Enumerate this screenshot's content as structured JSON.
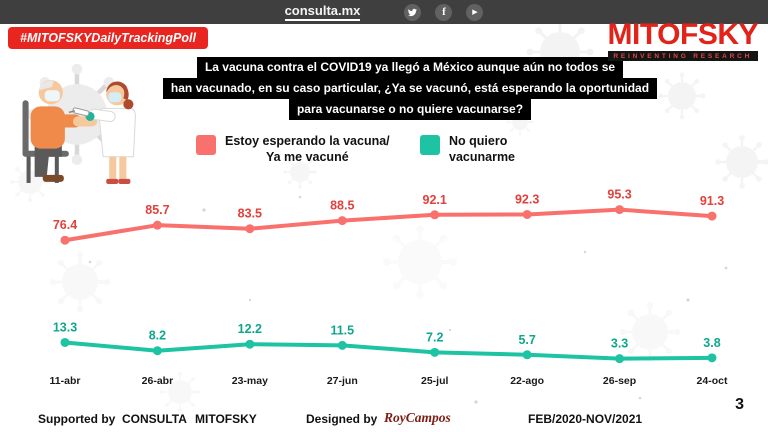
{
  "colors": {
    "brand_red": "#e2231a",
    "badge_red": "#e8251f",
    "topbar_dark": "#403f3f",
    "series_red": "#f8716c",
    "series_green": "#1dc3a3"
  },
  "topbar": {
    "site": "consulta.mx",
    "social": [
      "twitter",
      "facebook",
      "youtube"
    ]
  },
  "badge": "#MITOFSKYDailyTrackingPoll",
  "logo": {
    "name": "MITOFSKY",
    "tagline": "REINVENTING RESEARCH"
  },
  "question": {
    "lines": [
      "La vacuna contra el COVID19 ya llegó a México aunque aún no todos se",
      "han vacunado, en su caso particular, ¿Ya se vacunó, está esperando la oportunidad",
      "para vacunarse o no quiere vacunarse?"
    ]
  },
  "legend": [
    {
      "line1": "Estoy esperando la vacuna/",
      "line2": "Ya me vacuné",
      "color": "#f8716c"
    },
    {
      "line1": "No quiero",
      "line2": "vacunarme",
      "color": "#1dc3a3"
    }
  ],
  "chart_data": {
    "type": "line",
    "categories": [
      "11-abr",
      "26-abr",
      "23-may",
      "27-jun",
      "25-jul",
      "22-ago",
      "26-sep",
      "24-oct"
    ],
    "series": [
      {
        "name": "Estoy esperando la vacuna/ Ya me vacuné",
        "color": "#f8716c",
        "label_color": "#e2403b",
        "values": [
          76.4,
          85.7,
          83.5,
          88.5,
          92.1,
          92.3,
          95.3,
          91.3
        ]
      },
      {
        "name": "No quiero vacunarme",
        "color": "#1dc3a3",
        "label_color": "#0fa78c",
        "values": [
          13.3,
          8.2,
          12.2,
          11.5,
          7.2,
          5.7,
          3.3,
          3.8
        ]
      }
    ],
    "ylim": [
      0,
      100
    ],
    "grid": false,
    "legend_position": "top",
    "title": "La vacuna contra el COVID19 ya llegó a México aunque aún no todos se han vacunado, en su caso particular, ¿Ya se vacunó, está esperando la oportunidad para vacunarse o no quiere vacunarse?"
  },
  "footer": {
    "supported_label": "Supported by",
    "brand1": "CONSULTA",
    "brand2": "MITOFSKY",
    "designed_label": "Designed by",
    "designer": "RoyCampos",
    "period": "FEB/2020-NOV/2021",
    "page": "3"
  }
}
